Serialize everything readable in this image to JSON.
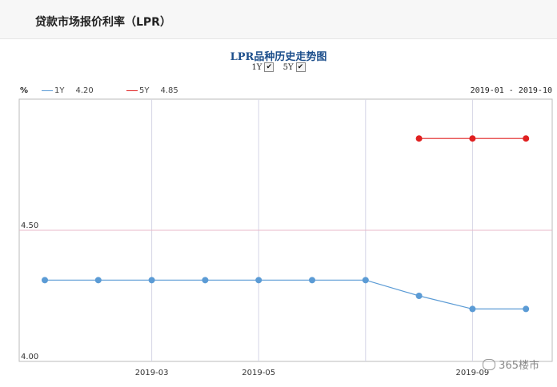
{
  "page": {
    "header_title": "贷款市场报价利率（LPR）",
    "watermark": "365楼市"
  },
  "chart_data": {
    "type": "line",
    "title": "LPR品种历史走势图",
    "unit_label": "%",
    "date_range": "2019-01 - 2019-10",
    "toggles": [
      {
        "label": "1Y",
        "checked": true
      },
      {
        "label": "5Y",
        "checked": true
      }
    ],
    "legend": [
      {
        "name": "1Y",
        "value": "4.20",
        "color": "#5b9bd5"
      },
      {
        "name": "5Y",
        "value": "4.85",
        "color": "#e02020"
      }
    ],
    "x": [
      "2019-01",
      "2019-02",
      "2019-03",
      "2019-04",
      "2019-05",
      "2019-06",
      "2019-07",
      "2019-08",
      "2019-09",
      "2019-10"
    ],
    "x_tick_labels": [
      {
        "x": "2019-03",
        "label": "2019-03"
      },
      {
        "x": "2019-05",
        "label": "2019-05"
      },
      {
        "x": "2019-09",
        "label": "2019-09"
      }
    ],
    "y_tick_labels": [
      "4.50",
      "4.00"
    ],
    "y_ticks": [
      4.5,
      4.0
    ],
    "ylim": [
      4.0,
      5.0
    ],
    "series": [
      {
        "name": "1Y",
        "color": "#5b9bd5",
        "values": [
          4.31,
          4.31,
          4.31,
          4.31,
          4.31,
          4.31,
          4.31,
          4.25,
          4.2,
          4.2
        ]
      },
      {
        "name": "5Y",
        "color": "#e02020",
        "values": [
          null,
          null,
          null,
          null,
          null,
          null,
          null,
          4.85,
          4.85,
          4.85
        ]
      }
    ],
    "grid": true,
    "legend_position": "top-left"
  }
}
